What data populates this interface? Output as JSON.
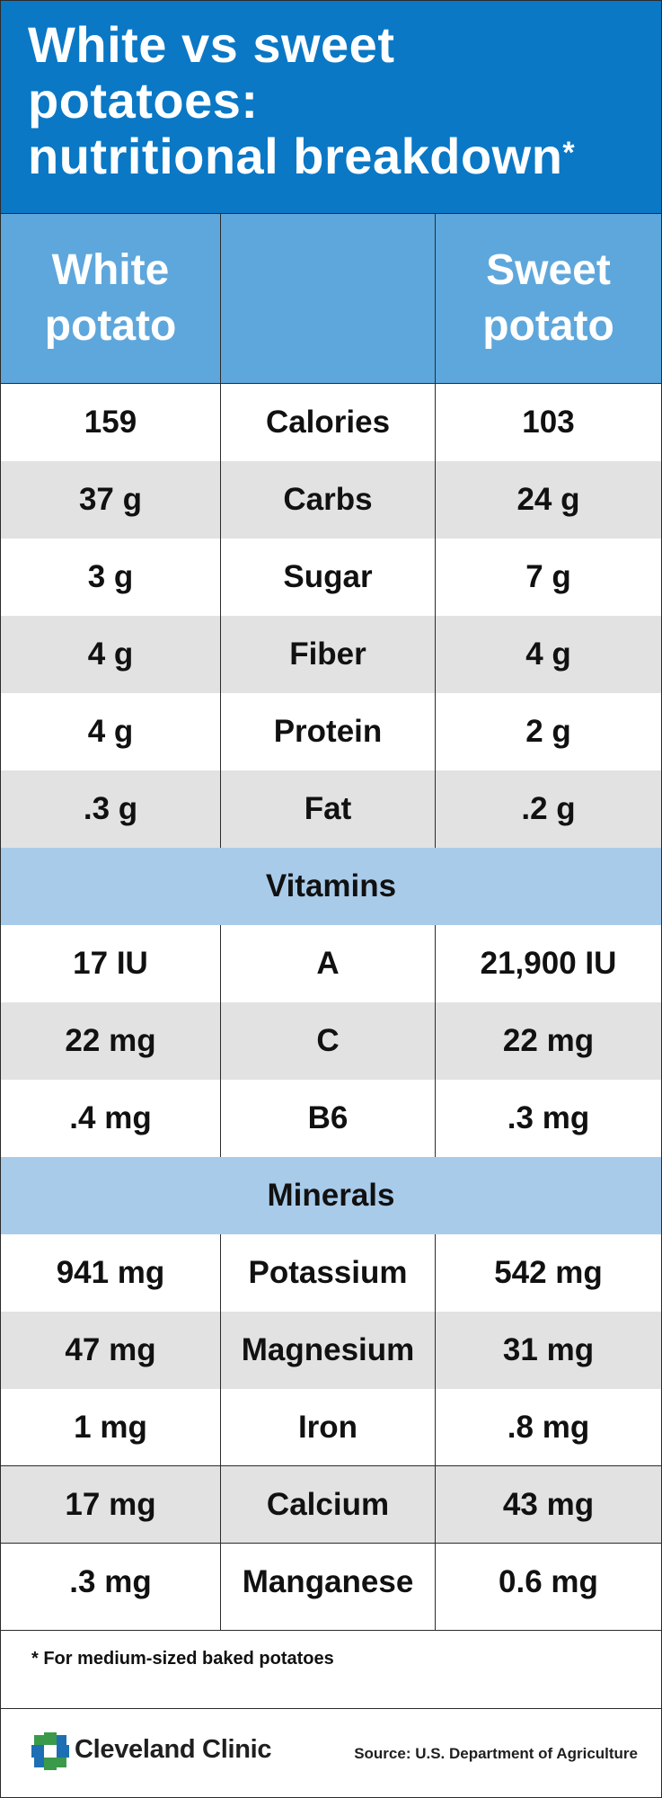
{
  "title": {
    "lines": [
      "White vs sweet",
      "potatoes:",
      "nutritional breakdown"
    ],
    "asterisk": "*"
  },
  "header": {
    "col1": [
      "White",
      "potato"
    ],
    "col3": [
      "Sweet",
      "potato"
    ]
  },
  "rows": [
    {
      "white": "159",
      "label": "Calories",
      "sweet": "103"
    },
    {
      "white": "37 g",
      "label": "Carbs",
      "sweet": "24 g"
    },
    {
      "white": "3 g",
      "label": "Sugar",
      "sweet": "7 g"
    },
    {
      "white": "4 g",
      "label": "Fiber",
      "sweet": "4 g"
    },
    {
      "white": "4 g",
      "label": "Protein",
      "sweet": "2 g"
    },
    {
      "white": ".3 g",
      "label": "Fat",
      "sweet": ".2 g"
    }
  ],
  "vitamins": {
    "heading": "Vitamins",
    "rows": [
      {
        "white": "17 IU",
        "label": "A",
        "sweet": "21,900 IU"
      },
      {
        "white": "22 mg",
        "label": "C",
        "sweet": "22 mg"
      },
      {
        "white": ".4 mg",
        "label": "B6",
        "sweet": ".3 mg"
      }
    ]
  },
  "minerals": {
    "heading": "Minerals",
    "rows": [
      {
        "white": "941 mg",
        "label": "Potassium",
        "sweet": "542 mg"
      },
      {
        "white": "47 mg",
        "label": "Magnesium",
        "sweet": "31 mg"
      },
      {
        "white": "1 mg",
        "label": "Iron",
        "sweet": ".8 mg"
      },
      {
        "white": "17 mg",
        "label": "Calcium",
        "sweet": "43 mg"
      },
      {
        "white": ".3 mg",
        "label": "Manganese",
        "sweet": "0.6 mg"
      }
    ]
  },
  "footnote": "* For medium-sized baked potatoes",
  "footer": {
    "brand": "Cleveland Clinic",
    "logo_icon": "cleveland-clinic-logo-icon",
    "source": "Source: U.S. Department of Agriculture"
  },
  "colors": {
    "title_bg": "#0a78c5",
    "header_bg": "#5ea7dc",
    "section_bg": "#a9cbea",
    "alt_row_bg": "#e2e2e2",
    "logo_green": "#3a9a4a",
    "logo_blue": "#1d6fb3"
  }
}
